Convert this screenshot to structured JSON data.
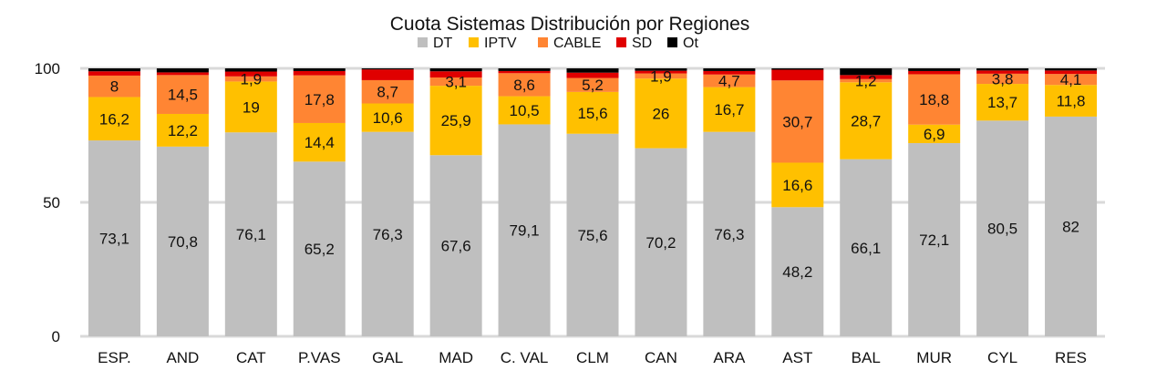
{
  "chart_data": {
    "type": "bar",
    "stacked": true,
    "title": "Cuota Sistemas Distribución por  Regiones",
    "xlabel": "",
    "ylabel": "",
    "ylim": [
      0,
      100
    ],
    "yticks": [
      "0",
      "50",
      "100"
    ],
    "grid": true,
    "legend_position": "top",
    "categories": [
      "ESP.",
      "AND",
      "CAT",
      "P.VAS",
      "GAL",
      "MAD",
      "C. VAL",
      "CLM",
      "CAN",
      "ARA",
      "AST",
      "BAL",
      "MUR",
      "CYL",
      "RES"
    ],
    "series": [
      {
        "name": "DT",
        "color": "#bfbfbf",
        "values": [
          73.1,
          70.8,
          76.1,
          65.2,
          76.3,
          67.6,
          79.1,
          75.6,
          70.2,
          76.3,
          48.2,
          66.1,
          72.1,
          80.5,
          82
        ],
        "labels": [
          "73,1",
          "70,8",
          "76,1",
          "65,2",
          "76,3",
          "67,6",
          "79,1",
          "75,6",
          "70,2",
          "76,3",
          "48,2",
          "66,1",
          "72,1",
          "80,5",
          "82"
        ]
      },
      {
        "name": "IPTV",
        "color": "#ffc000",
        "values": [
          16.2,
          12.2,
          19,
          14.4,
          10.6,
          25.9,
          10.5,
          15.6,
          26,
          16.7,
          16.6,
          28.7,
          6.9,
          13.7,
          11.8
        ],
        "labels": [
          "16,2",
          "12,2",
          "19",
          "14,4",
          "10,6",
          "25,9",
          "10,5",
          "15,6",
          "26",
          "16,7",
          "16,6",
          "28,7",
          "6,9",
          "13,7",
          "11,8"
        ]
      },
      {
        "name": "CABLE",
        "color": "#ff8533",
        "values": [
          8,
          14.5,
          1.9,
          17.8,
          8.7,
          3.1,
          8.6,
          5.2,
          1.9,
          4.7,
          30.7,
          1.2,
          18.8,
          3.8,
          4.1
        ],
        "labels": [
          "8",
          "14,5",
          "1,9",
          "17,8",
          "8,7",
          "3,1",
          "8,6",
          "5,2",
          "1,9",
          "4,7",
          "30,7",
          "1,2",
          "18,8",
          "3,8",
          "4,1"
        ]
      },
      {
        "name": "SD",
        "color": "#e00000",
        "values": [
          1.6,
          1.0,
          1.8,
          1.6,
          4.0,
          2.3,
          0.8,
          2.0,
          1.0,
          1.3,
          4.0,
          1.5,
          1.2,
          1.2,
          1.3
        ],
        "labels": null
      },
      {
        "name": "Ot",
        "color": "#000000",
        "values": [
          1.1,
          1.5,
          1.2,
          1.0,
          0.4,
          1.1,
          1.0,
          1.6,
          0.9,
          1.0,
          0.5,
          2.5,
          1.0,
          0.8,
          0.8
        ],
        "labels": null
      }
    ]
  }
}
